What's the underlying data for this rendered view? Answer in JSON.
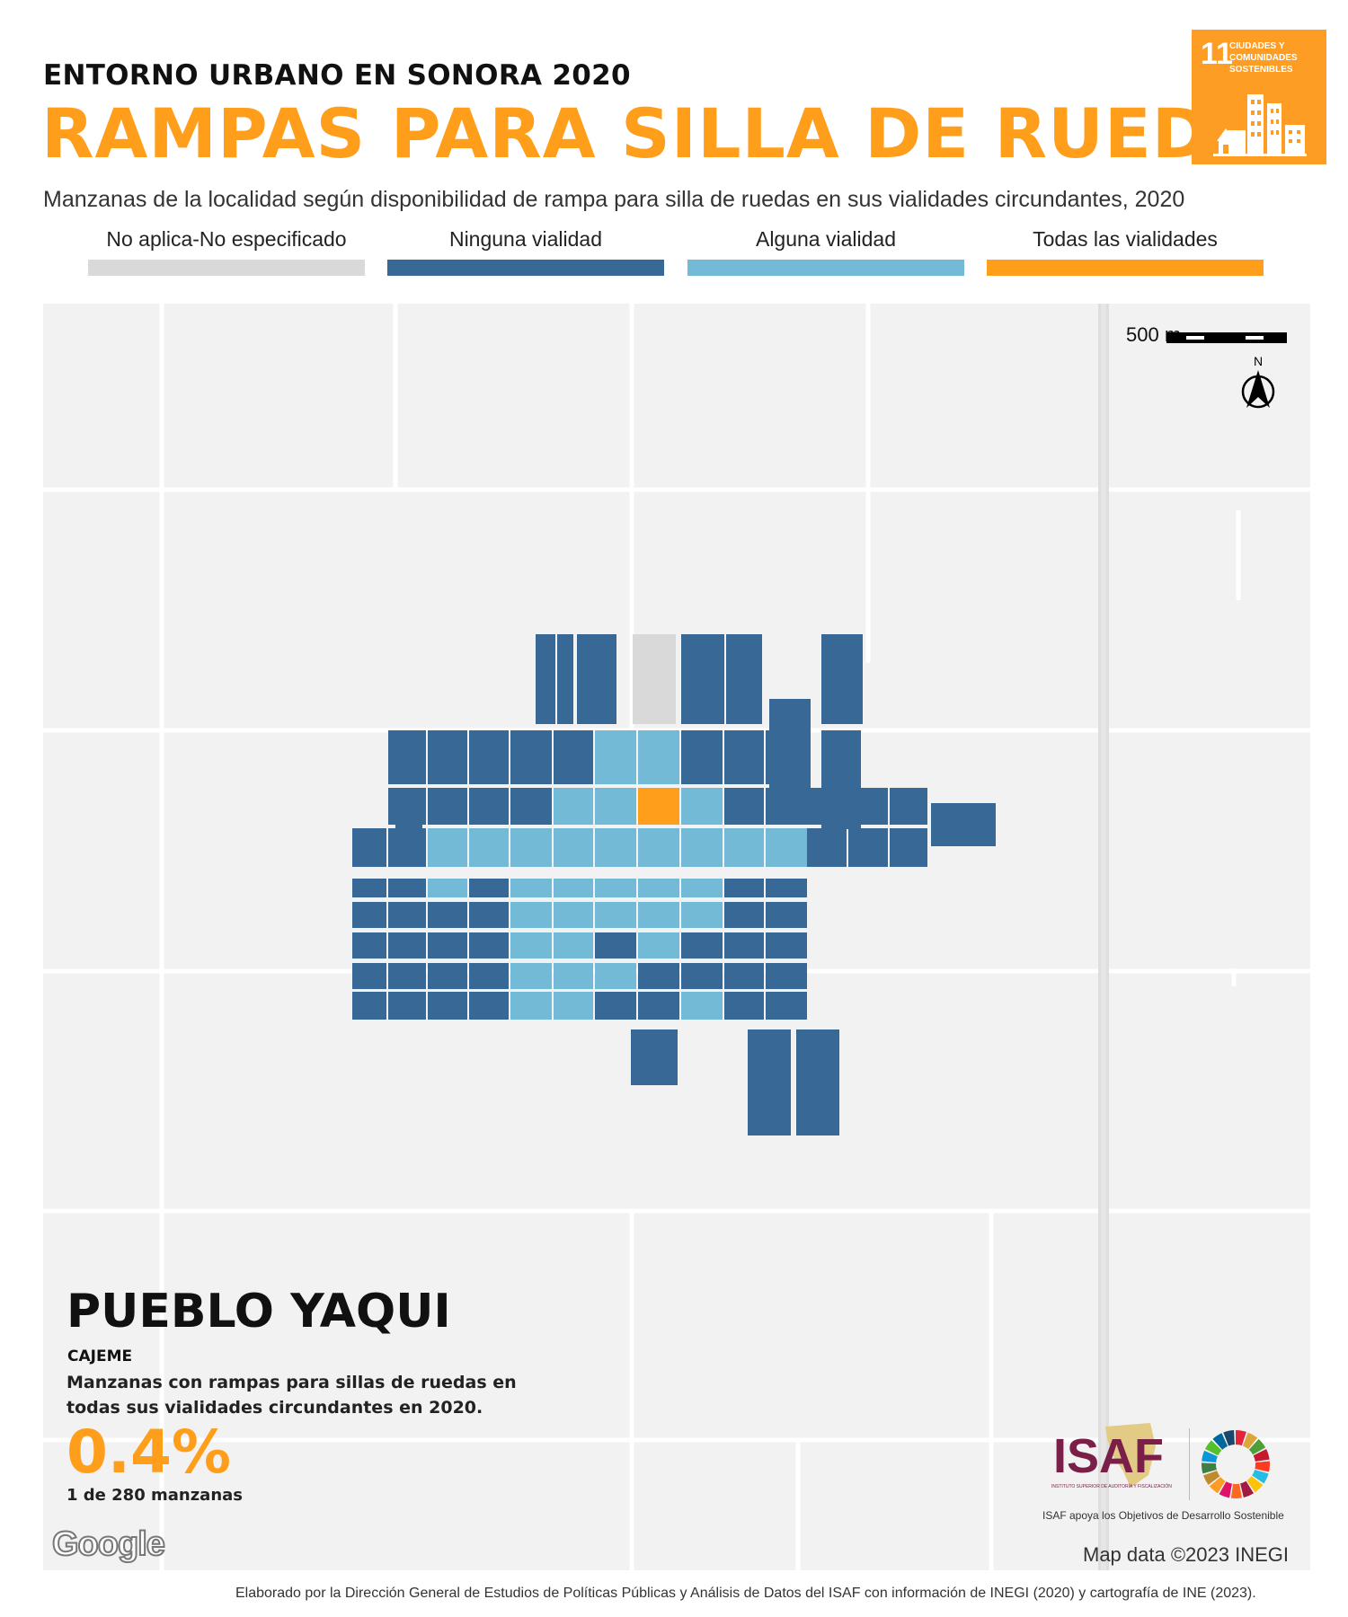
{
  "header": {
    "supertitle": "ENTORNO URBANO EN SONORA 2020",
    "title": "RAMPAS PARA SILLA DE RUEDAS",
    "subtitle": "Manzanas de la localidad según disponibilidad de rampa para silla de ruedas en sus vialidades circundantes, 2020"
  },
  "sdg_badge": {
    "number": "11",
    "text": "CIUDADES Y COMUNIDADES SOSTENIBLES",
    "color": "#FD9D24"
  },
  "legend": [
    {
      "label": "No aplica-No especificado",
      "color": "#D9D9D9"
    },
    {
      "label": "Ninguna vialidad",
      "color": "#376896"
    },
    {
      "label": "Alguna vialidad",
      "color": "#73BAD6"
    },
    {
      "label": "Todas las vialidades",
      "color": "#FF9E1B"
    }
  ],
  "map": {
    "scale_label": "500 m",
    "north_label": "N",
    "place_name": "PUEBLO YAQUI",
    "municipio": "CAJEME",
    "stat_description": "Manzanas con rampas para sillas de ruedas en todas sus vialidades circundantes en 2020.",
    "stat_percent": "0.4%",
    "stat_count": "1 de 280 manzanas",
    "google_logo": "Google",
    "credit": "Map data ©2023 INEGI"
  },
  "logos": {
    "isaf": "ISAF",
    "isaf_small": "INSTITUTO SUPERIOR DE AUDITORÍA Y FISCALIZACIÓN",
    "caption": "ISAF apoya los Objetivos de Desarrollo Sostenible"
  },
  "footer": "Elaborado por la Dirección General de Estudios de Políticas Públicas y Análisis de Datos del ISAF con información de INEGI (2020) y cartografía de INE (2023)."
}
